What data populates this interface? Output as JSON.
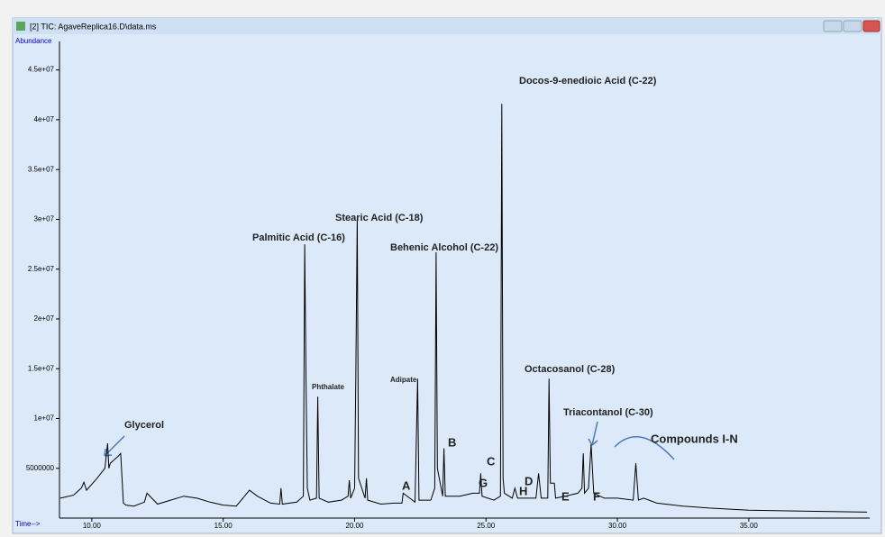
{
  "window_title": "[2] TIC: AgaveReplica16.D\\data.ms",
  "chart_data": {
    "type": "line",
    "y_axis_label": "Abundance",
    "x_axis_label": "Time-->",
    "color": "#000000",
    "xlim": [
      8.77,
      39.6
    ],
    "ylim": [
      0,
      47500000
    ],
    "xticks": [
      {
        "value": 10,
        "label": "10.00"
      },
      {
        "value": 15,
        "label": "15.00"
      },
      {
        "value": 20,
        "label": "20.00"
      },
      {
        "value": 25,
        "label": "25.00"
      },
      {
        "value": 30,
        "label": "30.00"
      },
      {
        "value": 35,
        "label": "35.00"
      }
    ],
    "yticks": [
      5000000,
      {
        "value": 10000000,
        "label": "1e+07"
      },
      {
        "value": 15000000,
        "label": "1.5e+07"
      },
      {
        "value": 20000000,
        "label": "2e+07"
      },
      {
        "value": 25000000,
        "label": "2.5e+07"
      },
      {
        "value": 30000000,
        "label": "3e+07"
      },
      {
        "value": 35000000,
        "label": "3.5e+07"
      },
      {
        "value": 40000000,
        "label": "4e+07"
      },
      {
        "value": 45000000,
        "label": "4.5e+07"
      }
    ],
    "x": [
      8.8,
      9.3,
      9.6,
      9.7,
      9.8,
      10.2,
      10.5,
      10.6,
      10.65,
      10.7,
      11.0,
      11.1,
      11.2,
      11.3,
      11.6,
      12.0,
      12.1,
      12.5,
      13.0,
      13.5,
      14.0,
      14.5,
      15.0,
      15.5,
      16.0,
      16.3,
      16.8,
      17.15,
      17.2,
      17.25,
      17.8,
      18.05,
      18.1,
      18.15,
      18.2,
      18.3,
      18.55,
      18.6,
      18.65,
      19.0,
      19.5,
      19.75,
      19.8,
      19.85,
      20.0,
      20.05,
      20.1,
      20.15,
      20.4,
      20.45,
      20.5,
      21.0,
      21.5,
      21.8,
      21.85,
      22.3,
      22.4,
      22.45,
      22.9,
      23.05,
      23.1,
      23.15,
      23.35,
      23.4,
      23.45,
      24.0,
      24.5,
      24.75,
      24.8,
      24.85,
      25.3,
      25.55,
      25.6,
      25.65,
      25.7,
      26.0,
      26.1,
      26.2,
      26.9,
      27.0,
      27.1,
      27.35,
      27.4,
      27.45,
      27.6,
      27.65,
      28.0,
      28.5,
      28.65,
      28.7,
      28.75,
      28.9,
      29.0,
      29.1,
      29.5,
      30.0,
      30.6,
      30.7,
      30.8,
      31.0,
      31.5,
      32.5,
      33.5,
      35.0,
      37.0,
      39.5
    ],
    "values": [
      2000000.0,
      2300000.0,
      3000000.0,
      3600000.0,
      2800000.0,
      4000000.0,
      5000000.0,
      7500000.0,
      5000000.0,
      5500000.0,
      6200000.0,
      6500000.0,
      1500000.0,
      1300000.0,
      1200000.0,
      1600000.0,
      2500000.0,
      1400000.0,
      1800000.0,
      2200000.0,
      2000000.0,
      1600000.0,
      1300000.0,
      1200000.0,
      2800000.0,
      2200000.0,
      1500000.0,
      1400000.0,
      3000000.0,
      1400000.0,
      1600000.0,
      2200000.0,
      27500000.0,
      14500000.0,
      3000000.0,
      1800000.0,
      2000000.0,
      12200000.0,
      2000000.0,
      1600000.0,
      1800000.0,
      2200000.0,
      3800000.0,
      2000000.0,
      3000000.0,
      15000000.0,
      30200000.0,
      4000000.0,
      2000000.0,
      4000000.0,
      1800000.0,
      1400000.0,
      1500000.0,
      1500000.0,
      2500000.0,
      1600000.0,
      14000000.0,
      1800000.0,
      1800000.0,
      3000000.0,
      26700000.0,
      5000000.0,
      2200000.0,
      7000000.0,
      2200000.0,
      2200000.0,
      2500000.0,
      2500000.0,
      4500000.0,
      2200000.0,
      1800000.0,
      2200000.0,
      41600000.0,
      4000000.0,
      2500000.0,
      2000000.0,
      3000000.0,
      2000000.0,
      2000000.0,
      4500000.0,
      2000000.0,
      2000000.0,
      14000000.0,
      3500000.0,
      3500000.0,
      2000000.0,
      2200000.0,
      2500000.0,
      3000000.0,
      6500000.0,
      2500000.0,
      3000000.0,
      7400000.0,
      2500000.0,
      2000000.0,
      2000000.0,
      1800000.0,
      5500000.0,
      1800000.0,
      2000000.0,
      1500000.0,
      1200000.0,
      1000000.0,
      800000.0,
      700000.0,
      600000.0
    ],
    "annotations": [
      "Glycerol",
      "Palmitic Acid (C-16)",
      "Phthalate",
      "Stearic Acid (C-18)",
      "Behenic Alcohol (C-22)",
      "Adipate",
      "Docos-9-enedioic Acid (C-22)",
      "Octacosanol (C-28)",
      "Triacontanol (C-30)",
      "Compounds I-N",
      "A",
      "B",
      "C",
      "G",
      "D",
      "H",
      "E",
      "F"
    ]
  }
}
